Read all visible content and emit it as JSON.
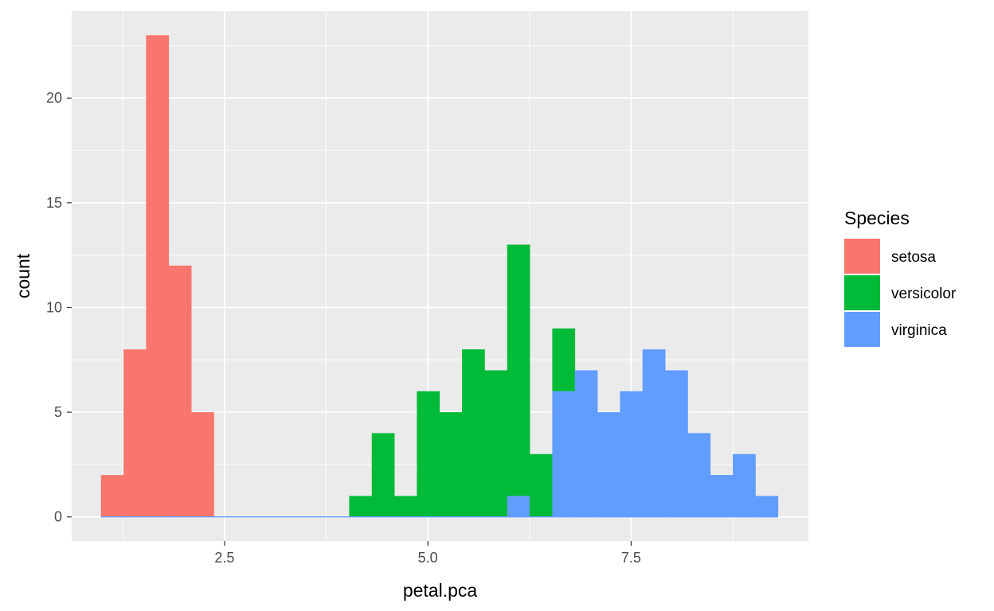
{
  "chart_data": {
    "type": "bar",
    "subtype": "stacked-histogram",
    "title": "",
    "xlabel": "petal.pca",
    "ylabel": "count",
    "xlim": [
      0.62,
      9.68
    ],
    "ylim": [
      -1.15,
      24.15
    ],
    "x_ticks": [
      2.5,
      5.0,
      7.5
    ],
    "x_tick_labels": [
      "2.5",
      "5.0",
      "7.5"
    ],
    "y_ticks": [
      0,
      5,
      10,
      15,
      20
    ],
    "y_tick_labels": [
      "0",
      "5",
      "10",
      "15",
      "20"
    ],
    "grid": true,
    "bin_width": 0.2775,
    "bin_start": 0.98,
    "categories": [
      1.119,
      1.396,
      1.674,
      1.951,
      2.229,
      2.506,
      2.784,
      3.061,
      3.339,
      3.616,
      3.894,
      4.171,
      4.449,
      4.726,
      5.004,
      5.281,
      5.559,
      5.836,
      6.114,
      6.391,
      6.669,
      6.946,
      7.224,
      7.501,
      7.779,
      8.056,
      8.334,
      8.611,
      8.889,
      9.166
    ],
    "series": [
      {
        "name": "setosa",
        "color": "#F8766D",
        "values": [
          2,
          8,
          23,
          12,
          5,
          0,
          0,
          0,
          0,
          0,
          0,
          0,
          0,
          0,
          0,
          0,
          0,
          0,
          0,
          0,
          0,
          0,
          0,
          0,
          0,
          0,
          0,
          0,
          0,
          0
        ]
      },
      {
        "name": "versicolor",
        "color": "#00BA38",
        "values": [
          0,
          0,
          0,
          0,
          0,
          0,
          0,
          0,
          0,
          0,
          0,
          1,
          4,
          1,
          6,
          5,
          8,
          7,
          12,
          3,
          3,
          0,
          0,
          0,
          0,
          0,
          0,
          0,
          0,
          0
        ]
      },
      {
        "name": "virginica",
        "color": "#619CFF",
        "values": [
          0,
          0,
          0,
          0,
          0,
          0,
          0,
          0,
          0,
          0,
          0,
          0,
          0,
          0,
          0,
          0,
          0,
          0,
          1,
          0,
          6,
          7,
          5,
          6,
          8,
          7,
          4,
          2,
          3,
          1
        ]
      }
    ],
    "legend": {
      "title": "Species",
      "position": "right"
    }
  }
}
